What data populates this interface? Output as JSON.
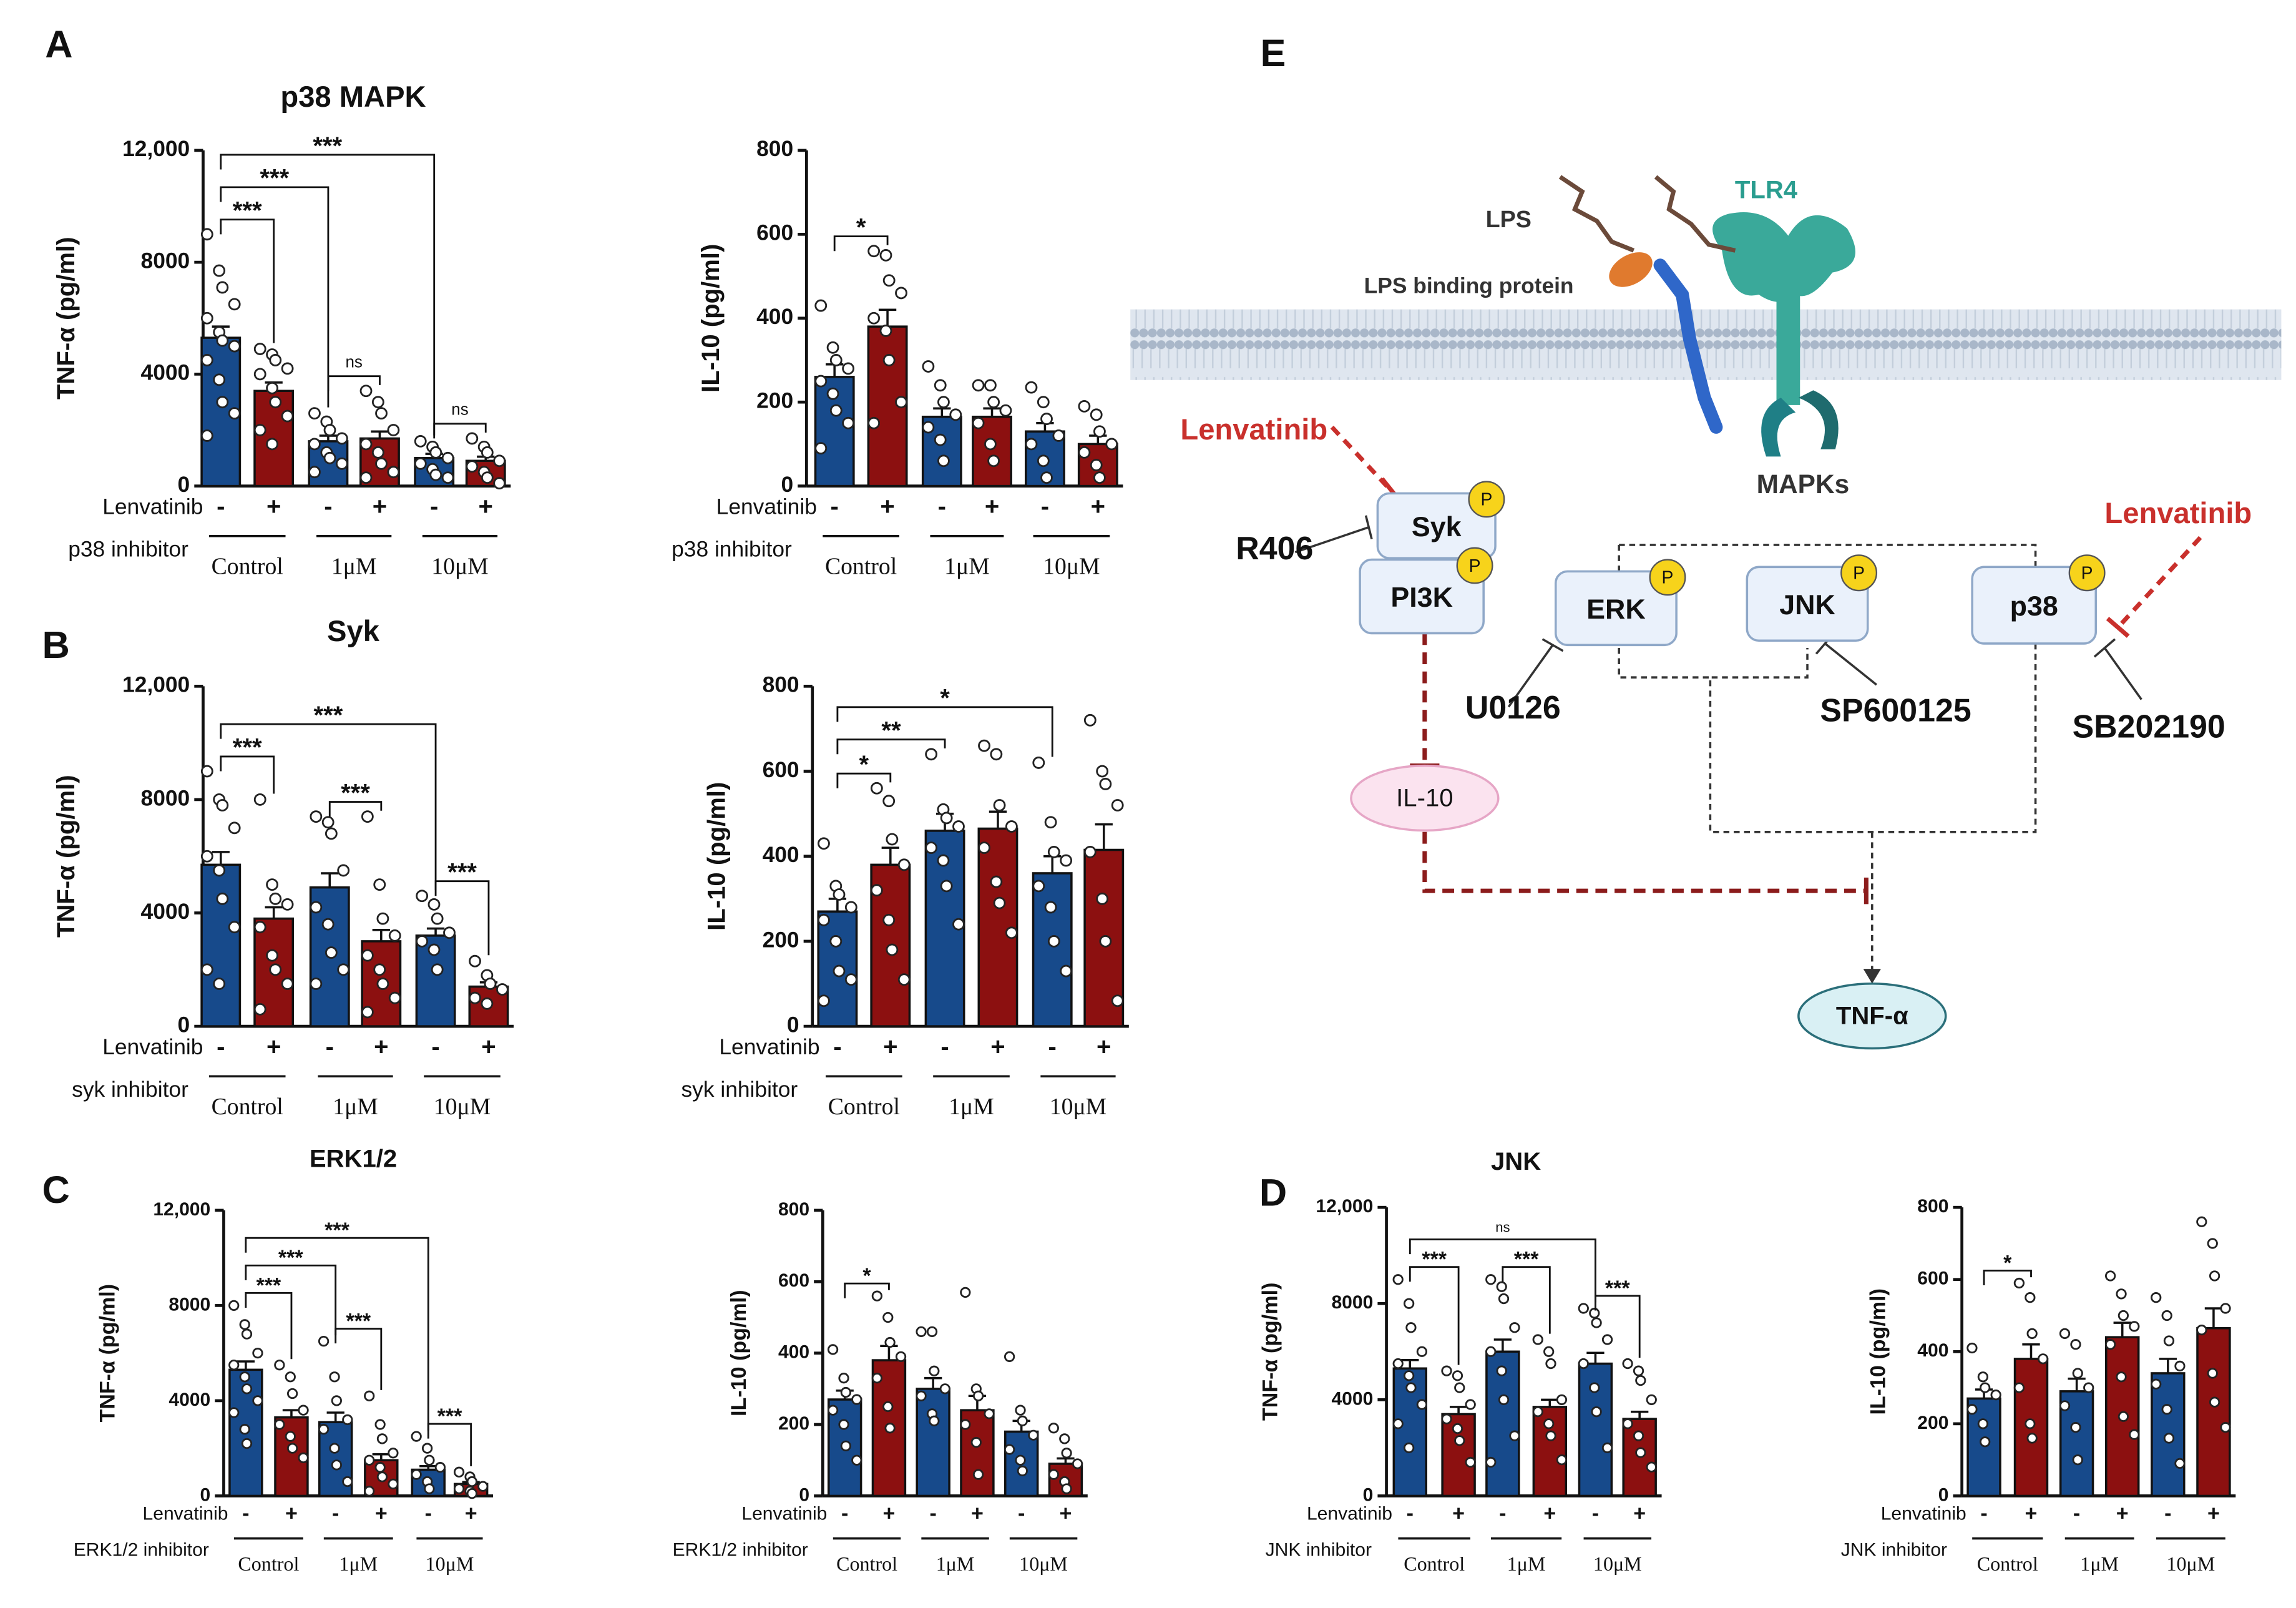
{
  "panels": [
    "A",
    "B",
    "C",
    "D",
    "E"
  ],
  "chart_data": [
    {
      "type": "bar",
      "title": "p38 MAPK",
      "ylabel": "TNF-α (pg/ml)",
      "categories": [
        "-",
        "+",
        "-",
        "+",
        "-",
        "+"
      ],
      "values": [
        5300,
        3400,
        1600,
        1700,
        1000,
        900
      ],
      "errors": [
        400,
        300,
        200,
        250,
        150,
        150
      ],
      "points": [
        [
          9000,
          7700,
          7100,
          6500,
          6000,
          5500,
          5200,
          5000,
          4500,
          3800,
          3000,
          2600,
          1800
        ],
        [
          4900,
          4700,
          4500,
          4200,
          4000,
          3500,
          3000,
          2500,
          2000,
          1500
        ],
        [
          2600,
          2300,
          2000,
          1700,
          1500,
          1200,
          1000,
          800,
          500
        ],
        [
          3400,
          3000,
          2600,
          2000,
          1500,
          1200,
          800,
          500,
          300
        ],
        [
          1600,
          1400,
          1200,
          1000,
          800,
          600,
          400,
          300
        ],
        [
          1700,
          1400,
          1200,
          900,
          700,
          500,
          300,
          100
        ]
      ],
      "colors": [
        "#174a8b",
        "#8c1010",
        "#174a8b",
        "#8c1010",
        "#174a8b",
        "#8c1010"
      ],
      "ylim": [
        0,
        12000
      ],
      "yticks": [
        0,
        4000,
        8000,
        {
          "value": 12000,
          "label": "12,000"
        }
      ],
      "row_labels": [
        "Lenvatinib",
        "p38 inhibitor"
      ],
      "groups": [
        "Control",
        "1μM",
        "10μM"
      ],
      "brackets": [
        {
          "from": 0,
          "to": 1,
          "label": "***"
        },
        {
          "from": 0,
          "to": 2,
          "label": "***"
        },
        {
          "from": 0,
          "to": 4,
          "label": "***"
        },
        {
          "from": 2,
          "to": 3,
          "label": "ns"
        },
        {
          "from": 4,
          "to": 5,
          "label": "ns"
        }
      ]
    },
    {
      "type": "bar",
      "ylabel": "IL-10 (pg/ml)",
      "categories": [
        "-",
        "+",
        "-",
        "+",
        "-",
        "+"
      ],
      "values": [
        260,
        380,
        165,
        165,
        130,
        100
      ],
      "errors": [
        30,
        40,
        20,
        20,
        20,
        20
      ],
      "points": [
        [
          430,
          330,
          300,
          280,
          250,
          220,
          180,
          150,
          90
        ],
        [
          560,
          550,
          490,
          460,
          400,
          370,
          300,
          200,
          150
        ],
        [
          285,
          240,
          200,
          170,
          140,
          110,
          60
        ],
        [
          240,
          240,
          200,
          180,
          150,
          100,
          60
        ],
        [
          235,
          200,
          160,
          120,
          100,
          60,
          20
        ],
        [
          190,
          170,
          130,
          100,
          80,
          50,
          20
        ]
      ],
      "colors": [
        "#174a8b",
        "#8c1010",
        "#174a8b",
        "#8c1010",
        "#174a8b",
        "#8c1010"
      ],
      "ylim": [
        0,
        800
      ],
      "yticks": [
        0,
        200,
        400,
        600,
        800
      ],
      "row_labels": [
        "Lenvatinib",
        "p38 inhibitor"
      ],
      "groups": [
        "Control",
        "1μM",
        "10μM"
      ],
      "brackets": [
        {
          "from": 0,
          "to": 1,
          "label": "*"
        }
      ]
    },
    {
      "type": "bar",
      "title": "Syk",
      "ylabel": "TNF-α (pg/ml)",
      "categories": [
        "-",
        "+",
        "-",
        "+",
        "-",
        "+"
      ],
      "values": [
        5700,
        3800,
        4900,
        3000,
        3200,
        1400
      ],
      "errors": [
        450,
        400,
        500,
        400,
        250,
        150
      ],
      "points": [
        [
          9000,
          8000,
          7800,
          7000,
          6000,
          5500,
          4500,
          3500,
          2000,
          1500
        ],
        [
          8000,
          5000,
          4500,
          4300,
          3500,
          2500,
          2000,
          1500,
          600
        ],
        [
          7400,
          7200,
          6800,
          5500,
          4200,
          3600,
          2600,
          2000,
          1500
        ],
        [
          7400,
          5000,
          3800,
          3200,
          2500,
          2000,
          1500,
          1000,
          500
        ],
        [
          4600,
          4300,
          3800,
          3300,
          3000,
          2700,
          2000
        ],
        [
          2300,
          1800,
          1500,
          1300,
          1000,
          800
        ]
      ],
      "colors": [
        "#174a8b",
        "#8c1010",
        "#174a8b",
        "#8c1010",
        "#174a8b",
        "#8c1010"
      ],
      "ylim": [
        0,
        12000
      ],
      "yticks": [
        0,
        4000,
        8000,
        {
          "value": 12000,
          "label": "12,000"
        }
      ],
      "row_labels": [
        "Lenvatinib",
        "syk inhibitor"
      ],
      "groups": [
        "Control",
        "1μM",
        "10μM"
      ],
      "brackets": [
        {
          "from": 0,
          "to": 1,
          "label": "***"
        },
        {
          "from": 0,
          "to": 4,
          "label": "***"
        },
        {
          "from": 2,
          "to": 3,
          "label": "***"
        },
        {
          "from": 4,
          "to": 5,
          "label": "***"
        }
      ]
    },
    {
      "type": "bar",
      "ylabel": "IL-10 (pg/ml)",
      "categories": [
        "-",
        "+",
        "-",
        "+",
        "-",
        "+"
      ],
      "values": [
        270,
        380,
        460,
        465,
        360,
        415
      ],
      "errors": [
        30,
        40,
        40,
        40,
        40,
        60
      ],
      "points": [
        [
          430,
          330,
          310,
          280,
          250,
          200,
          130,
          110,
          60
        ],
        [
          560,
          530,
          440,
          380,
          320,
          250,
          180,
          110
        ],
        [
          640,
          510,
          490,
          470,
          420,
          390,
          330,
          240
        ],
        [
          660,
          640,
          520,
          470,
          420,
          340,
          290,
          220
        ],
        [
          620,
          480,
          410,
          390,
          330,
          280,
          200,
          130
        ],
        [
          720,
          600,
          570,
          520,
          410,
          300,
          200,
          60
        ]
      ],
      "colors": [
        "#174a8b",
        "#8c1010",
        "#174a8b",
        "#8c1010",
        "#174a8b",
        "#8c1010"
      ],
      "ylim": [
        0,
        800
      ],
      "yticks": [
        0,
        200,
        400,
        600,
        800
      ],
      "row_labels": [
        "Lenvatinib",
        "syk inhibitor"
      ],
      "groups": [
        "Control",
        "1μM",
        "10μM"
      ],
      "brackets": [
        {
          "from": 0,
          "to": 1,
          "label": "*"
        },
        {
          "from": 0,
          "to": 2,
          "label": "**"
        },
        {
          "from": 0,
          "to": 4,
          "label": "*"
        }
      ]
    },
    {
      "type": "bar",
      "title": "ERK1/2",
      "ylabel": "TNF-α (pg/ml)",
      "categories": [
        "-",
        "+",
        "-",
        "+",
        "-",
        "+"
      ],
      "values": [
        5300,
        3300,
        3100,
        1500,
        1100,
        500
      ],
      "errors": [
        350,
        300,
        400,
        250,
        150,
        80
      ],
      "points": [
        [
          8000,
          7200,
          6800,
          6000,
          5500,
          5000,
          4500,
          4000,
          3500,
          2800,
          2200
        ],
        [
          5500,
          5000,
          4300,
          3600,
          3000,
          2500,
          2000,
          1600
        ],
        [
          6500,
          5000,
          4000,
          3200,
          2800,
          2000,
          1300,
          600
        ],
        [
          4200,
          3000,
          2400,
          1800,
          1500,
          1200,
          800,
          500,
          200
        ],
        [
          2500,
          2000,
          1500,
          1200,
          900,
          600,
          300
        ],
        [
          1000,
          800,
          600,
          400,
          300,
          200,
          100
        ]
      ],
      "colors": [
        "#174a8b",
        "#8c1010",
        "#174a8b",
        "#8c1010",
        "#174a8b",
        "#8c1010"
      ],
      "ylim": [
        0,
        12000
      ],
      "yticks": [
        0,
        4000,
        8000,
        {
          "value": 12000,
          "label": "12,000"
        }
      ],
      "row_labels": [
        "Lenvatinib",
        "ERK1/2 inhibitor"
      ],
      "groups": [
        "Control",
        "1μM",
        "10μM"
      ],
      "brackets": [
        {
          "from": 0,
          "to": 1,
          "label": "***"
        },
        {
          "from": 0,
          "to": 2,
          "label": "***"
        },
        {
          "from": 0,
          "to": 4,
          "label": "***"
        },
        {
          "from": 2,
          "to": 3,
          "label": "***"
        },
        {
          "from": 4,
          "to": 5,
          "label": "***"
        }
      ]
    },
    {
      "type": "bar",
      "ylabel": "IL-10 (pg/ml)",
      "categories": [
        "-",
        "+",
        "-",
        "+",
        "-",
        "+"
      ],
      "values": [
        270,
        380,
        300,
        240,
        180,
        90
      ],
      "errors": [
        25,
        40,
        30,
        40,
        30,
        15
      ],
      "points": [
        [
          410,
          330,
          290,
          270,
          240,
          200,
          140,
          100
        ],
        [
          560,
          500,
          430,
          390,
          330,
          250,
          190
        ],
        [
          460,
          460,
          350,
          300,
          280,
          230,
          210
        ],
        [
          570,
          300,
          280,
          230,
          200,
          150,
          60
        ],
        [
          390,
          240,
          210,
          170,
          130,
          100,
          70
        ],
        [
          190,
          160,
          120,
          90,
          60,
          40,
          20
        ]
      ],
      "colors": [
        "#174a8b",
        "#8c1010",
        "#174a8b",
        "#8c1010",
        "#174a8b",
        "#8c1010"
      ],
      "ylim": [
        0,
        800
      ],
      "yticks": [
        0,
        200,
        400,
        600,
        800
      ],
      "row_labels": [
        "Lenvatinib",
        "ERK1/2 inhibitor"
      ],
      "groups": [
        "Control",
        "1μM",
        "10μM"
      ],
      "brackets": [
        {
          "from": 0,
          "to": 1,
          "label": "*"
        }
      ]
    },
    {
      "type": "bar",
      "title": "JNK",
      "ylabel": "TNF-α (pg/ml)",
      "categories": [
        "-",
        "+",
        "-",
        "+",
        "-",
        "+"
      ],
      "values": [
        5300,
        3400,
        6000,
        3700,
        5500,
        3200
      ],
      "errors": [
        350,
        300,
        500,
        300,
        450,
        300
      ],
      "points": [
        [
          9000,
          8000,
          7000,
          6000,
          5500,
          5000,
          4500,
          3800,
          3000,
          2000
        ],
        [
          5200,
          5000,
          4500,
          3800,
          3200,
          2800,
          2300,
          1400
        ],
        [
          9000,
          8700,
          8200,
          7000,
          6000,
          5200,
          4000,
          2500,
          1400
        ],
        [
          6500,
          6000,
          5500,
          4000,
          3500,
          3000,
          2500,
          1500
        ],
        [
          7800,
          7600,
          7200,
          6500,
          5500,
          4500,
          3500,
          2000
        ],
        [
          5500,
          5200,
          4800,
          4000,
          3000,
          2500,
          1800,
          1200
        ]
      ],
      "colors": [
        "#174a8b",
        "#8c1010",
        "#174a8b",
        "#8c1010",
        "#174a8b",
        "#8c1010"
      ],
      "ylim": [
        0,
        12000
      ],
      "yticks": [
        0,
        4000,
        8000,
        {
          "value": 12000,
          "label": "12,000"
        }
      ],
      "row_labels": [
        "Lenvatinib",
        "JNK inhibitor"
      ],
      "groups": [
        "Control",
        "1μM",
        "10μM"
      ],
      "brackets": [
        {
          "from": 0,
          "to": 1,
          "label": "***"
        },
        {
          "from": 0,
          "to": 4,
          "label": "ns"
        },
        {
          "from": 2,
          "to": 3,
          "label": "***"
        },
        {
          "from": 4,
          "to": 5,
          "label": "***"
        }
      ]
    },
    {
      "type": "bar",
      "ylabel": "IL-10 (pg/ml)",
      "categories": [
        "-",
        "+",
        "-",
        "+",
        "-",
        "+"
      ],
      "values": [
        270,
        380,
        290,
        440,
        340,
        465
      ],
      "errors": [
        25,
        40,
        35,
        40,
        40,
        55
      ],
      "points": [
        [
          410,
          330,
          300,
          280,
          240,
          200,
          150
        ],
        [
          590,
          550,
          450,
          380,
          300,
          200,
          160
        ],
        [
          450,
          420,
          340,
          300,
          250,
          190,
          100
        ],
        [
          610,
          560,
          500,
          470,
          420,
          330,
          220,
          170
        ],
        [
          550,
          500,
          430,
          360,
          310,
          240,
          160,
          90
        ],
        [
          760,
          700,
          610,
          520,
          460,
          340,
          260,
          190
        ]
      ],
      "colors": [
        "#174a8b",
        "#8c1010",
        "#174a8b",
        "#8c1010",
        "#174a8b",
        "#8c1010"
      ],
      "ylim": [
        0,
        800
      ],
      "yticks": [
        0,
        200,
        400,
        600,
        800
      ],
      "row_labels": [
        "Lenvatinib",
        "JNK inhibitor"
      ],
      "groups": [
        "Control",
        "1μM",
        "10μM"
      ],
      "brackets": [
        {
          "from": 0,
          "to": 1,
          "label": "*"
        }
      ]
    }
  ],
  "diagram": {
    "lps": "LPS",
    "tlr4": "TLR4",
    "lbp": "LPS binding protein",
    "mapks": "MAPKs",
    "drug": "Lenvatinib",
    "nodes": {
      "syk": "Syk",
      "pi3k": "PI3K",
      "erk": "ERK",
      "jnk": "JNK",
      "p38": "p38",
      "il10": "IL-10",
      "tnf": "TNF-α"
    },
    "phospho": "P",
    "inhibitors": {
      "r406": "R406",
      "u0126": "U0126",
      "sp": "SP600125",
      "sb": "SB202190"
    }
  }
}
